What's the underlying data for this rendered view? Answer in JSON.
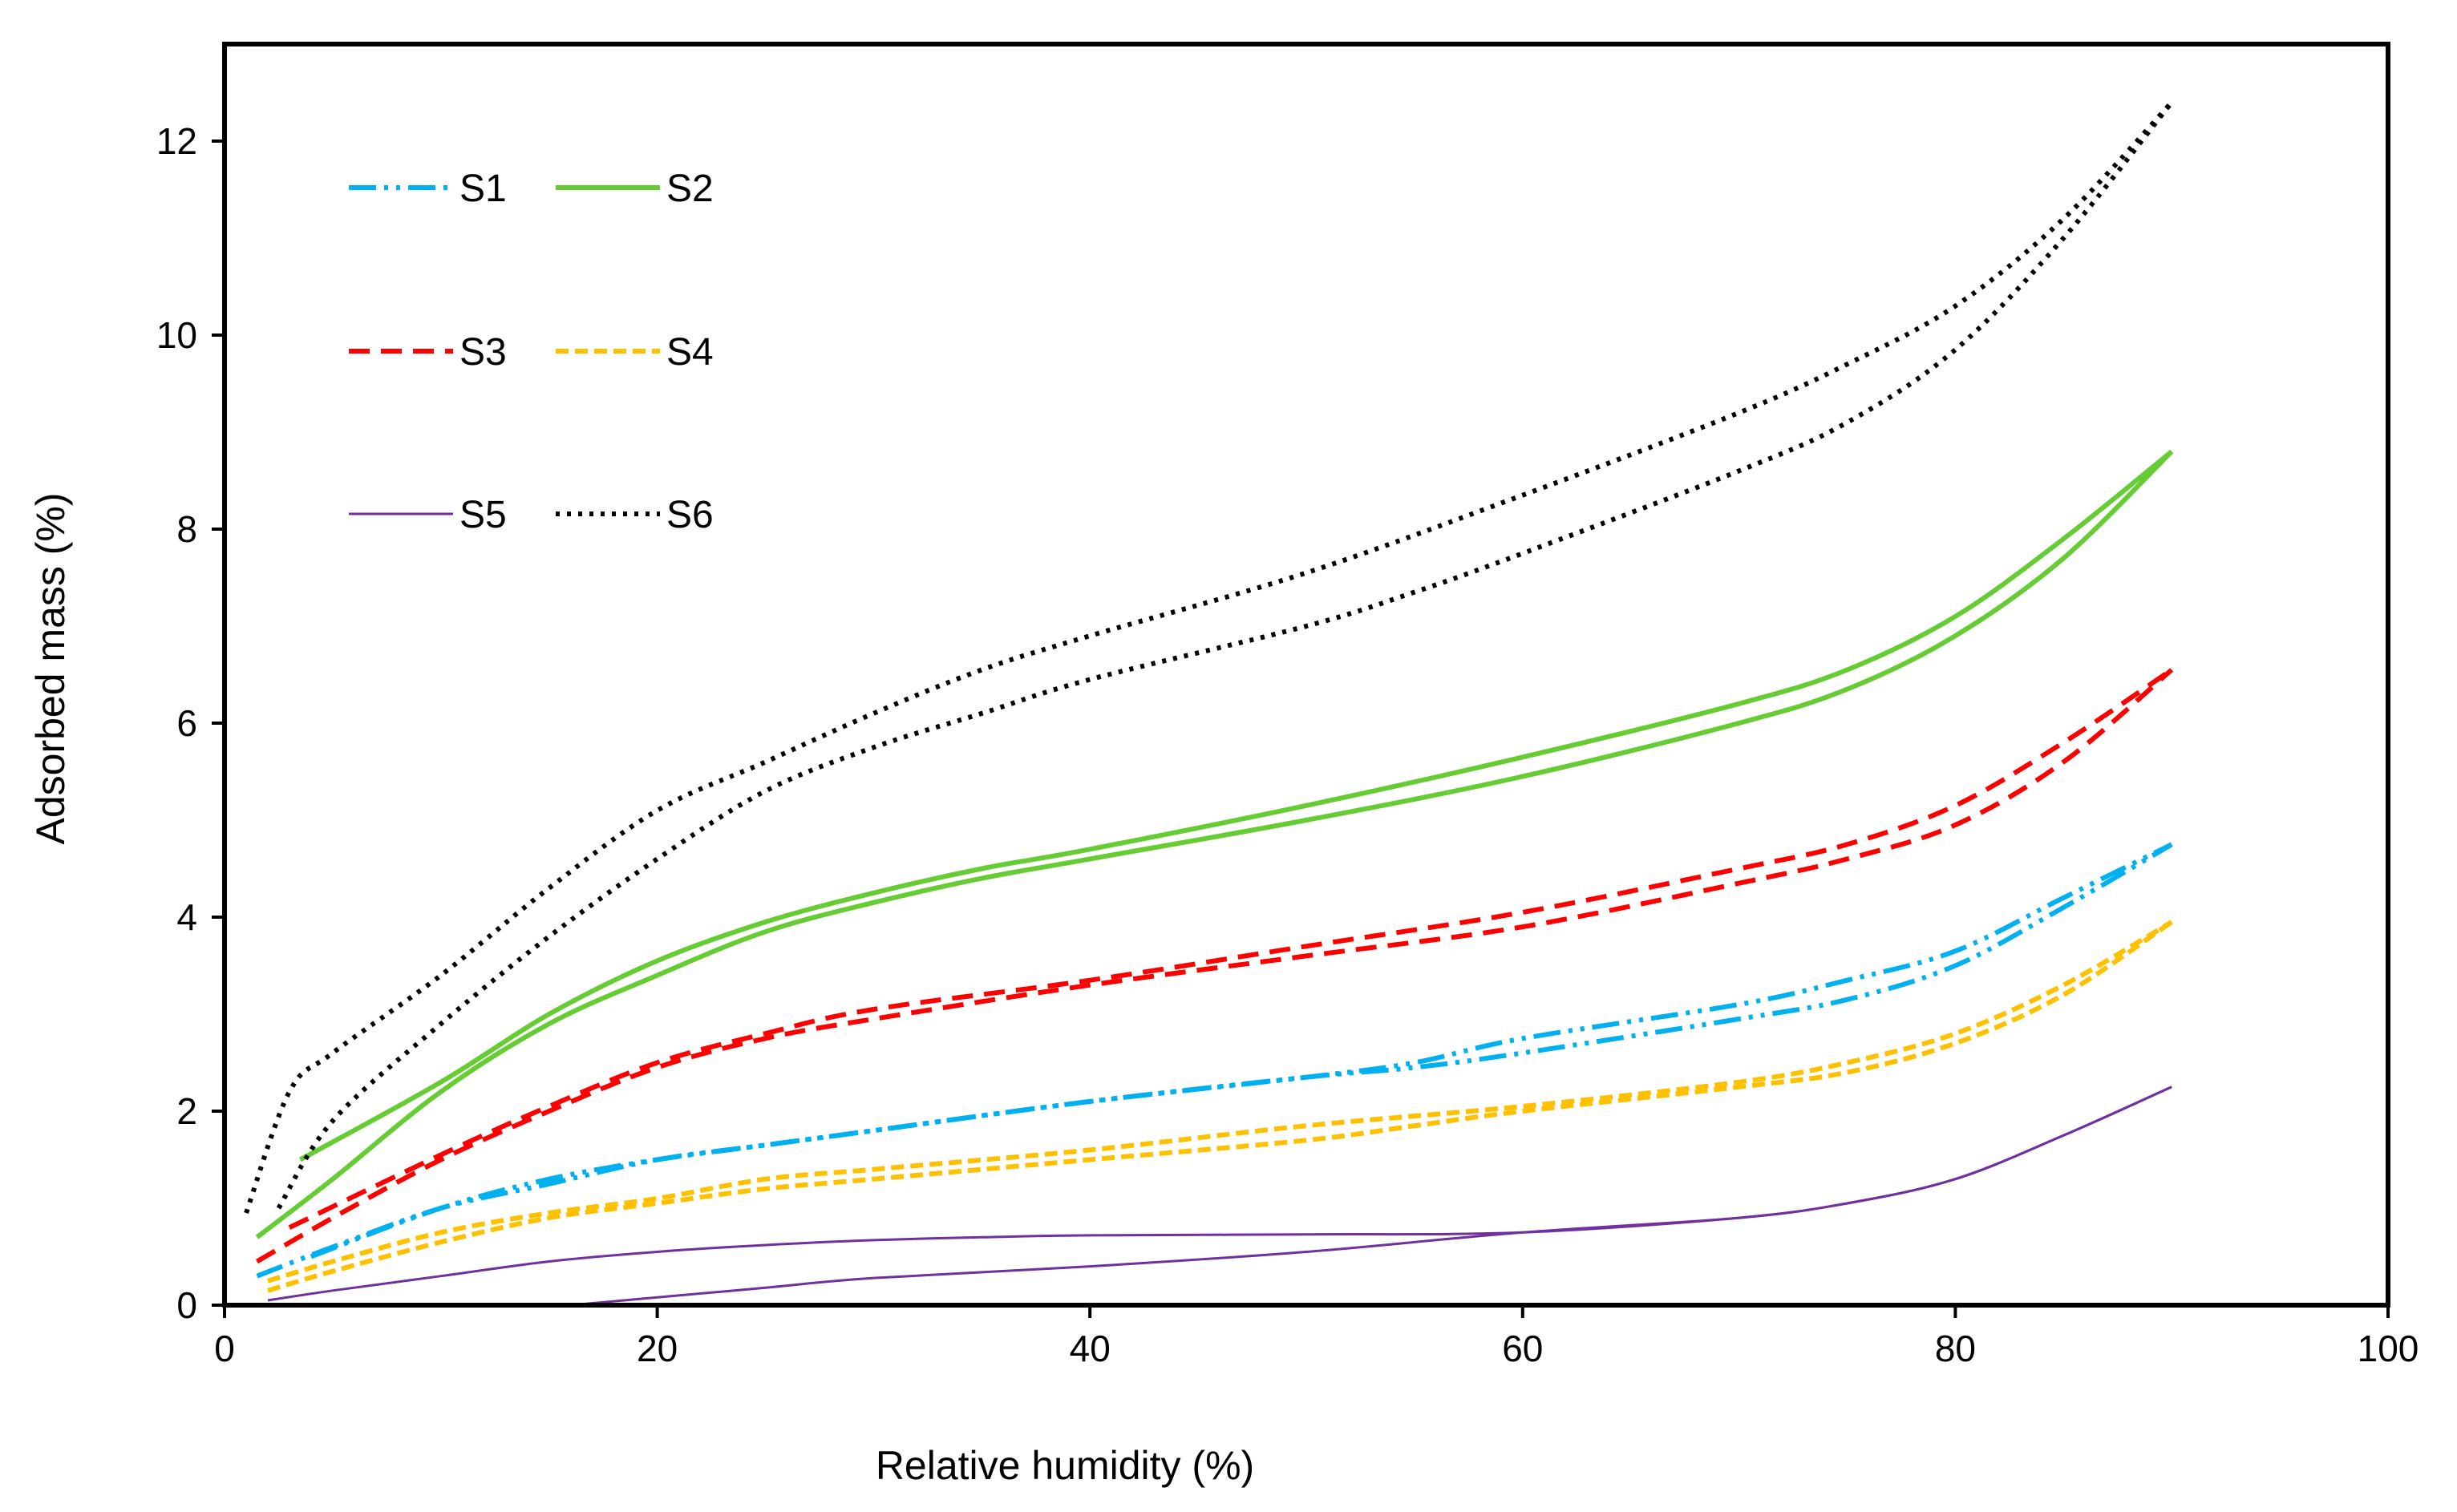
{
  "chart_data": {
    "type": "line",
    "title": "",
    "xlabel": "Relative humidity (%)",
    "ylabel": "Adsorbed mass (%)",
    "xlim": [
      0,
      100
    ],
    "ylim": [
      0,
      13
    ],
    "xticks": [
      0,
      20,
      40,
      60,
      80,
      100
    ],
    "yticks": [
      0,
      2,
      4,
      6,
      8,
      10,
      12
    ],
    "grid": false,
    "legend_position": "top-left",
    "series": [
      {
        "name": "S1",
        "color": "#00B0F0",
        "style": "dash-dot-dot",
        "adsorption": [
          [
            1.5,
            0.3
          ],
          [
            5,
            0.6
          ],
          [
            10,
            1.0
          ],
          [
            15,
            1.25
          ],
          [
            20,
            1.5
          ],
          [
            25,
            1.65
          ],
          [
            30,
            1.8
          ],
          [
            40,
            2.1
          ],
          [
            50,
            2.35
          ],
          [
            55,
            2.45
          ],
          [
            60,
            2.6
          ],
          [
            70,
            2.95
          ],
          [
            75,
            3.15
          ],
          [
            80,
            3.5
          ],
          [
            85,
            4.1
          ],
          [
            90,
            4.75
          ]
        ],
        "desorption": [
          [
            4,
            0.5
          ],
          [
            10,
            1.0
          ],
          [
            15,
            1.3
          ],
          [
            20,
            1.5
          ],
          [
            25,
            1.65
          ],
          [
            30,
            1.8
          ],
          [
            40,
            2.1
          ],
          [
            50,
            2.35
          ],
          [
            55,
            2.5
          ],
          [
            60,
            2.75
          ],
          [
            70,
            3.1
          ],
          [
            75,
            3.35
          ],
          [
            80,
            3.65
          ],
          [
            85,
            4.2
          ],
          [
            90,
            4.75
          ]
        ]
      },
      {
        "name": "S2",
        "color": "#66CC33",
        "style": "solid",
        "adsorption": [
          [
            1.5,
            0.7
          ],
          [
            5,
            1.3
          ],
          [
            10,
            2.2
          ],
          [
            15,
            2.9
          ],
          [
            20,
            3.4
          ],
          [
            25,
            3.85
          ],
          [
            30,
            4.15
          ],
          [
            35,
            4.4
          ],
          [
            40,
            4.6
          ],
          [
            50,
            5.0
          ],
          [
            60,
            5.45
          ],
          [
            70,
            6.0
          ],
          [
            75,
            6.35
          ],
          [
            80,
            6.9
          ],
          [
            85,
            7.7
          ],
          [
            90,
            8.8
          ]
        ],
        "desorption": [
          [
            3.5,
            1.5
          ],
          [
            10,
            2.3
          ],
          [
            15,
            3.0
          ],
          [
            20,
            3.55
          ],
          [
            25,
            3.95
          ],
          [
            30,
            4.25
          ],
          [
            35,
            4.5
          ],
          [
            40,
            4.7
          ],
          [
            50,
            5.15
          ],
          [
            60,
            5.65
          ],
          [
            70,
            6.2
          ],
          [
            75,
            6.55
          ],
          [
            80,
            7.1
          ],
          [
            85,
            7.9
          ],
          [
            90,
            8.8
          ]
        ]
      },
      {
        "name": "S3",
        "color": "#FF0000",
        "style": "dash",
        "adsorption": [
          [
            1.5,
            0.45
          ],
          [
            5,
            0.9
          ],
          [
            10,
            1.5
          ],
          [
            15,
            2.0
          ],
          [
            20,
            2.45
          ],
          [
            25,
            2.75
          ],
          [
            30,
            2.95
          ],
          [
            40,
            3.3
          ],
          [
            50,
            3.6
          ],
          [
            60,
            3.9
          ],
          [
            70,
            4.35
          ],
          [
            75,
            4.6
          ],
          [
            80,
            4.95
          ],
          [
            85,
            5.6
          ],
          [
            90,
            6.55
          ]
        ],
        "desorption": [
          [
            3,
            0.8
          ],
          [
            10,
            1.55
          ],
          [
            15,
            2.05
          ],
          [
            20,
            2.5
          ],
          [
            25,
            2.8
          ],
          [
            30,
            3.05
          ],
          [
            40,
            3.35
          ],
          [
            50,
            3.7
          ],
          [
            60,
            4.05
          ],
          [
            70,
            4.5
          ],
          [
            75,
            4.75
          ],
          [
            80,
            5.15
          ],
          [
            85,
            5.8
          ],
          [
            90,
            6.55
          ]
        ]
      },
      {
        "name": "S4",
        "color": "#FFC000",
        "style": "short-dash",
        "adsorption": [
          [
            2,
            0.15
          ],
          [
            5,
            0.35
          ],
          [
            10,
            0.65
          ],
          [
            15,
            0.9
          ],
          [
            20,
            1.05
          ],
          [
            25,
            1.2
          ],
          [
            30,
            1.3
          ],
          [
            40,
            1.5
          ],
          [
            50,
            1.7
          ],
          [
            55,
            1.85
          ],
          [
            60,
            2.0
          ],
          [
            70,
            2.25
          ],
          [
            75,
            2.4
          ],
          [
            80,
            2.7
          ],
          [
            85,
            3.2
          ],
          [
            90,
            3.95
          ]
        ],
        "desorption": [
          [
            2,
            0.25
          ],
          [
            5,
            0.45
          ],
          [
            10,
            0.75
          ],
          [
            15,
            0.95
          ],
          [
            20,
            1.1
          ],
          [
            25,
            1.3
          ],
          [
            30,
            1.4
          ],
          [
            40,
            1.6
          ],
          [
            50,
            1.85
          ],
          [
            60,
            2.05
          ],
          [
            70,
            2.3
          ],
          [
            75,
            2.5
          ],
          [
            80,
            2.8
          ],
          [
            85,
            3.3
          ],
          [
            90,
            3.95
          ]
        ]
      },
      {
        "name": "S5",
        "color": "#7030A0",
        "style": "thin-solid",
        "adsorption": [
          [
            16,
            0.0
          ],
          [
            20,
            0.08
          ],
          [
            25,
            0.18
          ],
          [
            30,
            0.28
          ],
          [
            40,
            0.4
          ],
          [
            50,
            0.55
          ],
          [
            60,
            0.75
          ],
          [
            70,
            0.9
          ],
          [
            75,
            1.05
          ],
          [
            80,
            1.3
          ],
          [
            85,
            1.75
          ],
          [
            90,
            2.25
          ]
        ],
        "desorption": [
          [
            2,
            0.05
          ],
          [
            5,
            0.15
          ],
          [
            10,
            0.3
          ],
          [
            15,
            0.45
          ],
          [
            20,
            0.55
          ],
          [
            25,
            0.62
          ],
          [
            30,
            0.67
          ],
          [
            35,
            0.7
          ],
          [
            40,
            0.72
          ],
          [
            50,
            0.73
          ],
          [
            60,
            0.75
          ],
          [
            70,
            0.9
          ],
          [
            75,
            1.05
          ],
          [
            80,
            1.3
          ],
          [
            85,
            1.75
          ],
          [
            90,
            2.25
          ]
        ]
      },
      {
        "name": "S6",
        "color": "#000000",
        "style": "dotted",
        "adsorption": [
          [
            2.5,
            1.0
          ],
          [
            5,
            1.9
          ],
          [
            10,
            2.9
          ],
          [
            15,
            3.8
          ],
          [
            20,
            4.6
          ],
          [
            25,
            5.3
          ],
          [
            30,
            5.75
          ],
          [
            35,
            6.1
          ],
          [
            40,
            6.45
          ],
          [
            50,
            7.0
          ],
          [
            55,
            7.35
          ],
          [
            60,
            7.75
          ],
          [
            70,
            8.6
          ],
          [
            75,
            9.1
          ],
          [
            80,
            9.85
          ],
          [
            85,
            11.0
          ],
          [
            90,
            12.4
          ]
        ],
        "desorption": [
          [
            1,
            0.95
          ],
          [
            3,
            2.2
          ],
          [
            5,
            2.6
          ],
          [
            10,
            3.4
          ],
          [
            15,
            4.3
          ],
          [
            20,
            5.1
          ],
          [
            25,
            5.6
          ],
          [
            30,
            6.1
          ],
          [
            35,
            6.55
          ],
          [
            40,
            6.9
          ],
          [
            50,
            7.55
          ],
          [
            60,
            8.35
          ],
          [
            70,
            9.2
          ],
          [
            75,
            9.7
          ],
          [
            80,
            10.3
          ],
          [
            85,
            11.2
          ],
          [
            90,
            12.4
          ]
        ]
      }
    ]
  }
}
